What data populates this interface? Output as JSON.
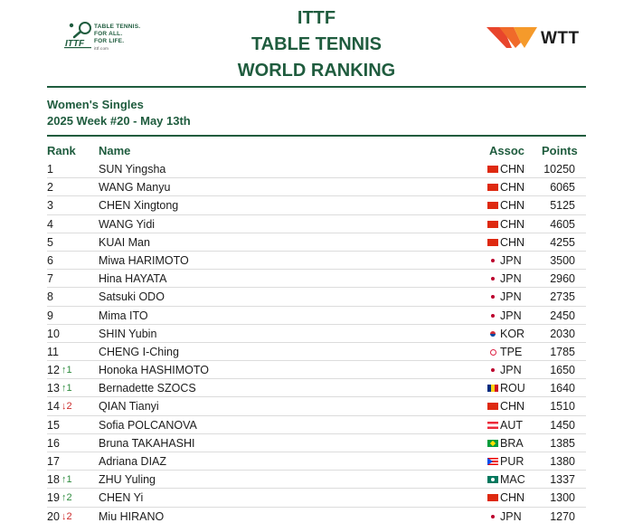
{
  "header": {
    "title_lines": [
      "ITTF",
      "TABLE TENNIS",
      "WORLD RANKING"
    ],
    "ittf_logo": {
      "mark_text": "ITTF",
      "tagline": [
        "TABLE TENNIS.",
        "FOR ALL.",
        "FOR LIFE."
      ],
      "url": "ittf.com"
    },
    "wtt_logo": {
      "text": "WTT",
      "colors": [
        "#e8452c",
        "#f59a2b"
      ]
    }
  },
  "subtitle": {
    "category": "Women's Singles",
    "week": "2025 Week #20 - May 13th"
  },
  "columns": {
    "rank": "Rank",
    "name": "Name",
    "assoc": "Assoc",
    "points": "Points"
  },
  "colors": {
    "brand_green": "#1f5c3e",
    "up": "#2e8b3e",
    "down": "#cc2a2a"
  },
  "rows": [
    {
      "rank": "1",
      "move": "",
      "dir": "",
      "name": "SUN Yingsha",
      "assoc": "CHN",
      "points": "10250"
    },
    {
      "rank": "2",
      "move": "",
      "dir": "",
      "name": "WANG Manyu",
      "assoc": "CHN",
      "points": "6065"
    },
    {
      "rank": "3",
      "move": "",
      "dir": "",
      "name": "CHEN Xingtong",
      "assoc": "CHN",
      "points": "5125"
    },
    {
      "rank": "4",
      "move": "",
      "dir": "",
      "name": "WANG Yidi",
      "assoc": "CHN",
      "points": "4605"
    },
    {
      "rank": "5",
      "move": "",
      "dir": "",
      "name": "KUAI Man",
      "assoc": "CHN",
      "points": "4255"
    },
    {
      "rank": "6",
      "move": "",
      "dir": "",
      "name": "Miwa HARIMOTO",
      "assoc": "JPN",
      "points": "3500"
    },
    {
      "rank": "7",
      "move": "",
      "dir": "",
      "name": "Hina HAYATA",
      "assoc": "JPN",
      "points": "2960"
    },
    {
      "rank": "8",
      "move": "",
      "dir": "",
      "name": "Satsuki ODO",
      "assoc": "JPN",
      "points": "2735"
    },
    {
      "rank": "9",
      "move": "",
      "dir": "",
      "name": "Mima ITO",
      "assoc": "JPN",
      "points": "2450"
    },
    {
      "rank": "10",
      "move": "",
      "dir": "",
      "name": "SHIN Yubin",
      "assoc": "KOR",
      "points": "2030"
    },
    {
      "rank": "11",
      "move": "",
      "dir": "",
      "name": "CHENG I-Ching",
      "assoc": "TPE",
      "points": "1785"
    },
    {
      "rank": "12",
      "move": "↑1",
      "dir": "up",
      "name": "Honoka HASHIMOTO",
      "assoc": "JPN",
      "points": "1650"
    },
    {
      "rank": "13",
      "move": "↑1",
      "dir": "up",
      "name": "Bernadette SZOCS",
      "assoc": "ROU",
      "points": "1640"
    },
    {
      "rank": "14",
      "move": "↓2",
      "dir": "down",
      "name": "QIAN Tianyi",
      "assoc": "CHN",
      "points": "1510"
    },
    {
      "rank": "15",
      "move": "",
      "dir": "",
      "name": "Sofia POLCANOVA",
      "assoc": "AUT",
      "points": "1450"
    },
    {
      "rank": "16",
      "move": "",
      "dir": "",
      "name": "Bruna TAKAHASHI",
      "assoc": "BRA",
      "points": "1385"
    },
    {
      "rank": "17",
      "move": "",
      "dir": "",
      "name": "Adriana DIAZ",
      "assoc": "PUR",
      "points": "1380"
    },
    {
      "rank": "18",
      "move": "↑1",
      "dir": "up",
      "name": "ZHU Yuling",
      "assoc": "MAC",
      "points": "1337"
    },
    {
      "rank": "19",
      "move": "↑2",
      "dir": "up",
      "name": "CHEN Yi",
      "assoc": "CHN",
      "points": "1300"
    },
    {
      "rank": "20",
      "move": "↓2",
      "dir": "down",
      "name": "Miu HIRANO",
      "assoc": "JPN",
      "points": "1270"
    }
  ]
}
